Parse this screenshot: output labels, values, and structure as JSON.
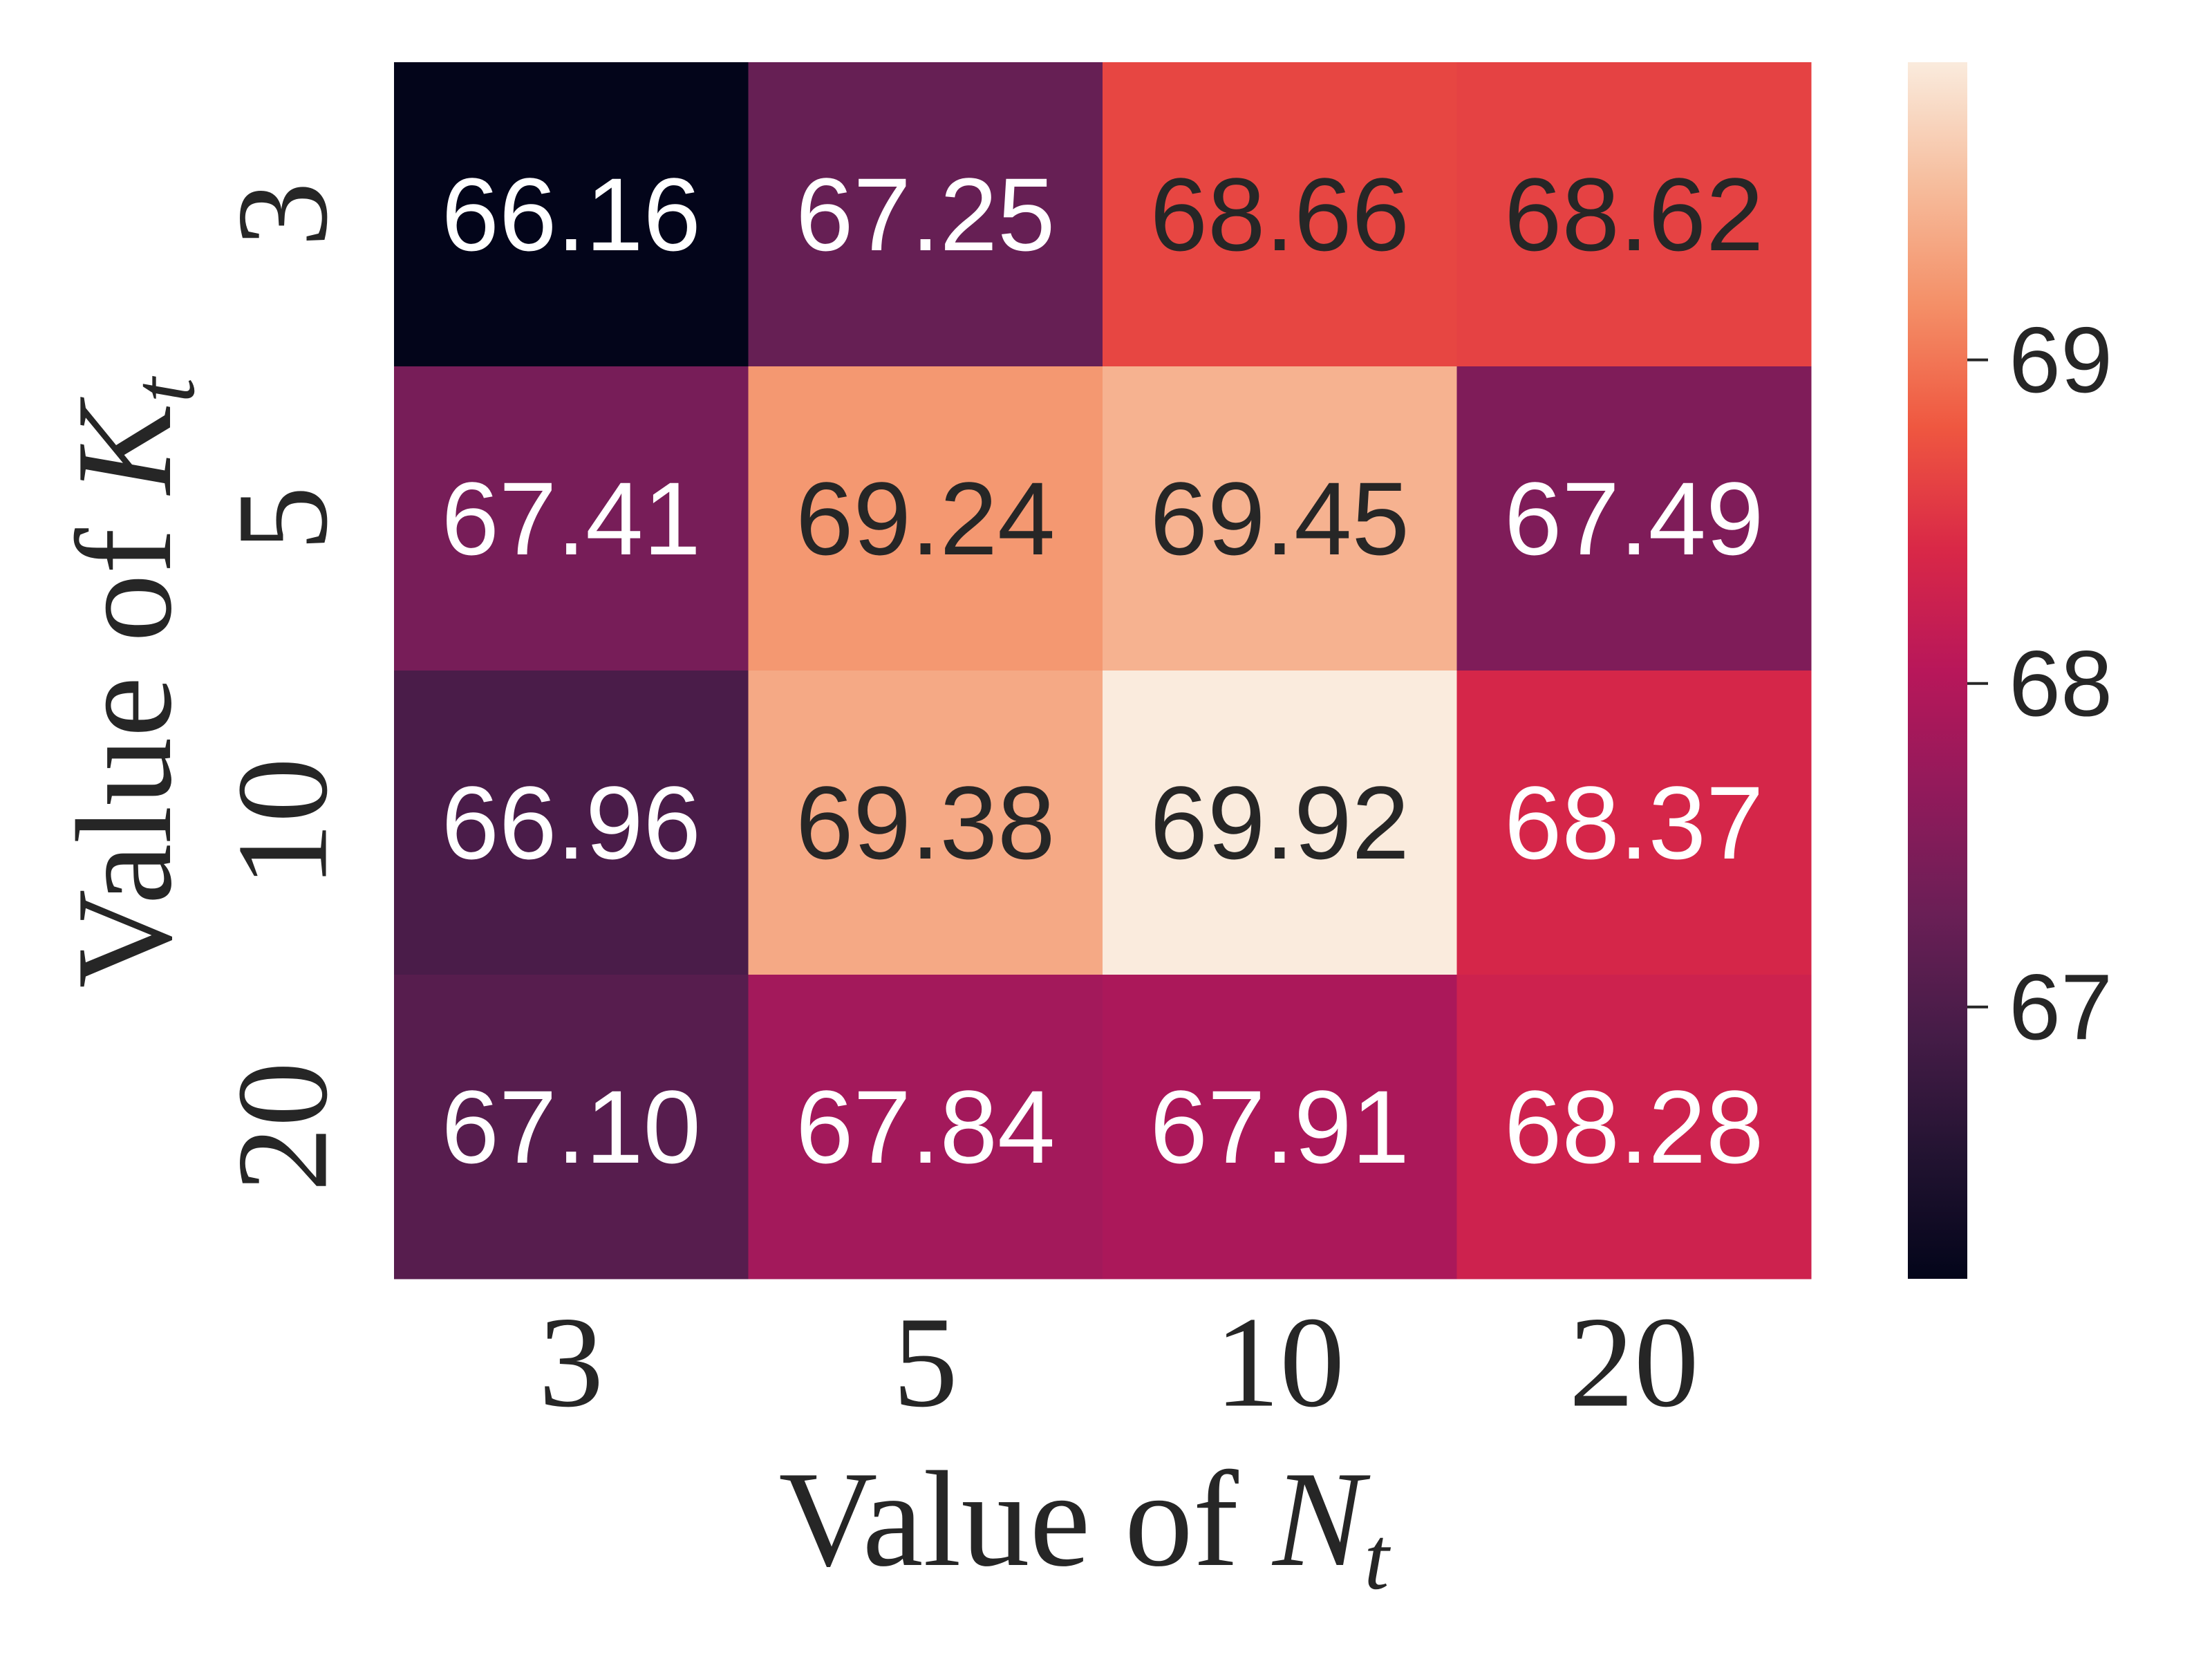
{
  "chart_data": {
    "type": "heatmap",
    "x_categories": [
      "3",
      "5",
      "10",
      "20"
    ],
    "y_categories": [
      "3",
      "5",
      "10",
      "20"
    ],
    "values": [
      [
        66.16,
        67.25,
        68.66,
        68.62
      ],
      [
        67.41,
        69.24,
        69.45,
        67.49
      ],
      [
        66.96,
        69.38,
        69.92,
        68.37
      ],
      [
        67.1,
        67.84,
        67.91,
        68.28
      ]
    ],
    "value_labels": [
      [
        "66.16",
        "67.25",
        "68.66",
        "68.62"
      ],
      [
        "67.41",
        "69.24",
        "69.45",
        "67.49"
      ],
      [
        "66.96",
        "69.38",
        "69.92",
        "68.37"
      ],
      [
        "67.10",
        "67.84",
        "67.91",
        "68.28"
      ]
    ],
    "xlabel": {
      "prefix": "Value of ",
      "var": "N",
      "sub": "t"
    },
    "ylabel": {
      "prefix": "Value of ",
      "var": "K",
      "sub": "t"
    },
    "colorbar": {
      "range": [
        66.16,
        69.92
      ],
      "ticks": [
        67,
        68,
        69
      ],
      "tick_labels": [
        "67",
        "68",
        "69"
      ],
      "colormap": "rocket"
    }
  }
}
